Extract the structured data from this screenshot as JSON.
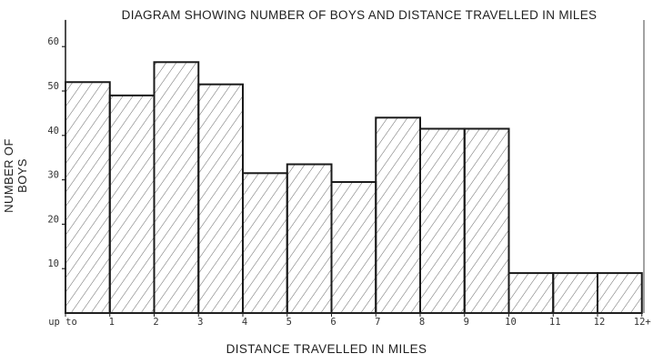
{
  "chart_data": {
    "type": "bar",
    "title": "DIAGRAM SHOWING NUMBER OF BOYS AND DISTANCE TRAVELLED IN MILES",
    "xlabel": "DISTANCE TRAVELLED IN MILES",
    "ylabel": "NUMBER OF BOYS",
    "categories": [
      "up to 1",
      "1-2",
      "2-3",
      "3-4",
      "4-5",
      "5-6",
      "6-7",
      "7-8",
      "8-9",
      "9-10",
      "10-11",
      "11-12",
      "12+"
    ],
    "values": [
      52,
      49,
      56.5,
      51.5,
      31.5,
      33.5,
      29.5,
      44,
      41.5,
      41.5,
      9,
      9,
      9
    ],
    "x_tick_labels": [
      "up to",
      "1",
      "2",
      "3",
      "4",
      "5",
      "6",
      "7",
      "8",
      "9",
      "10",
      "11",
      "12",
      "12+"
    ],
    "y_ticks": [
      10,
      20,
      30,
      40,
      50,
      60
    ],
    "ylim": [
      0,
      66
    ],
    "grid": false,
    "bar_style": "hatched histogram"
  }
}
